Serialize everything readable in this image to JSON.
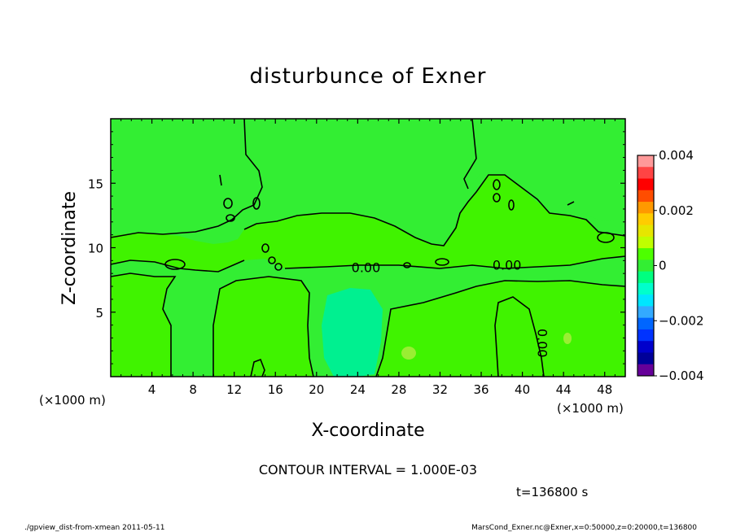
{
  "chart_data": {
    "type": "heatmap",
    "title": "disturbunce of Exner",
    "xlabel": "X-coordinate",
    "ylabel": "Z-coordinate",
    "x_unit": "(×1000 m)",
    "x_unit_left": "(×1000 m)",
    "xlim": [
      0,
      50
    ],
    "ylim": [
      0,
      20
    ],
    "x_ticks": [
      4,
      8,
      12,
      16,
      20,
      24,
      28,
      32,
      36,
      40,
      44,
      48
    ],
    "y_ticks": [
      5,
      10,
      15
    ],
    "contour_interval": "CONTOUR INTERVAL = 1.000E-03",
    "contour_labels": [
      {
        "text": "0.00",
        "x": 24.8,
        "z": 8.1
      },
      {
        "text": "0.00",
        "x": 38.5,
        "z": 8.3
      },
      {
        "text": "0.00",
        "x": 41.5,
        "z": 2.6,
        "rotated": true
      }
    ],
    "time_label": "t=136800 s",
    "colorbar": {
      "min": -0.004,
      "max": 0.004,
      "labels": [
        "0.004",
        "0.002",
        "0",
        "−0.002",
        "−0.004"
      ],
      "colors": [
        "#ff9999",
        "#ff4444",
        "#ff0000",
        "#ff4d00",
        "#ff9900",
        "#ffcc00",
        "#e6e600",
        "#bfff00",
        "#4dff00",
        "#33ee33",
        "#00ff80",
        "#00ffcc",
        "#00e6ff",
        "#33aaff",
        "#0066ff",
        "#0033ff",
        "#0000cc",
        "#000099",
        "#660099"
      ]
    },
    "field_colors": {
      "near_zero_positive": "#33ee33",
      "slightly_positive": "#3ff300",
      "slightly_negative": "#00f090",
      "positive_spot": "#99ee33"
    }
  },
  "footer": {
    "left": "./gpview_dist-from-xmean  2011-05-11",
    "right": "MarsCond_Exner.nc@Exner,x=0:50000,z=0:20000,t=136800"
  }
}
